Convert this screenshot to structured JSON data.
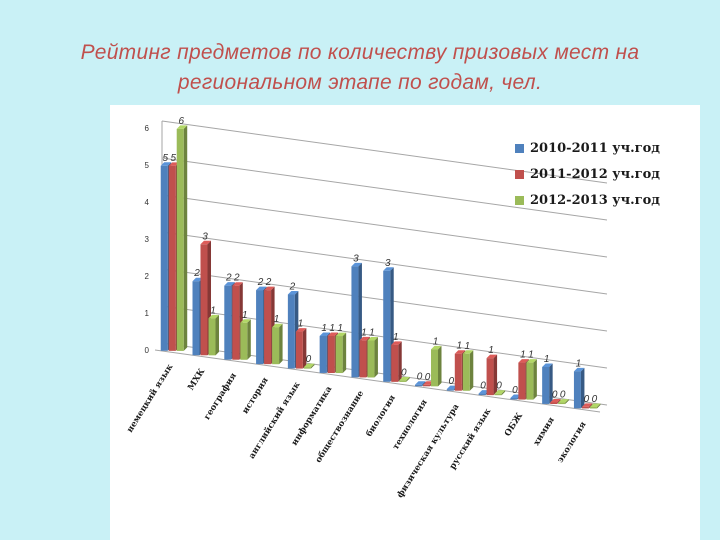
{
  "title_lines": [
    "Рейтинг предметов по количеству призовых мест на",
    "региональном этапе по годам, чел."
  ],
  "colors": {
    "accent_title": "#c0504d",
    "background": "#c9f1f6"
  },
  "chart_data": {
    "type": "bar",
    "categories": [
      "немецкий язык",
      "МХК",
      "география",
      "история",
      "английский язык",
      "информатика",
      "обществознание",
      "биология",
      "технология",
      "физическая культура",
      "русский язык",
      "ОБЖ",
      "химия",
      "экология"
    ],
    "series": [
      {
        "name": "2010-2011 уч.год",
        "color": "#4f81bd",
        "values": [
          5,
          2,
          2,
          2,
          2,
          1,
          3,
          3,
          0,
          0,
          0,
          0,
          1,
          1
        ]
      },
      {
        "name": "2011-2012 уч.год",
        "color": "#c0504d",
        "values": [
          5,
          3,
          2,
          2,
          1,
          1,
          1,
          1,
          0,
          1,
          1,
          1,
          0,
          0
        ]
      },
      {
        "name": "2012-2013 уч.год",
        "color": "#9bbb59",
        "values": [
          6,
          1,
          1,
          1,
          0,
          1,
          1,
          0,
          1,
          1,
          0,
          1,
          0,
          0
        ]
      }
    ],
    "data_labels": [
      [
        "5",
        "2",
        "2",
        "2",
        "2",
        "1",
        "3",
        "3",
        "0",
        "0",
        "0",
        "0",
        "1",
        "1"
      ],
      [
        "5",
        "3",
        "2",
        "2",
        "1",
        "1",
        "1",
        "1",
        "0",
        "1",
        "1",
        "1",
        "0",
        "0"
      ],
      [
        "6",
        "1",
        "1",
        "1",
        "0",
        "1",
        "1",
        "0",
        "1",
        "1",
        "0",
        "1",
        "0",
        "0"
      ]
    ],
    "y_ticks": [
      "0",
      "1",
      "2",
      "3",
      "4",
      "5",
      "6"
    ],
    "ylim": [
      0,
      6
    ],
    "grid": true,
    "legend_position": "top-right"
  }
}
